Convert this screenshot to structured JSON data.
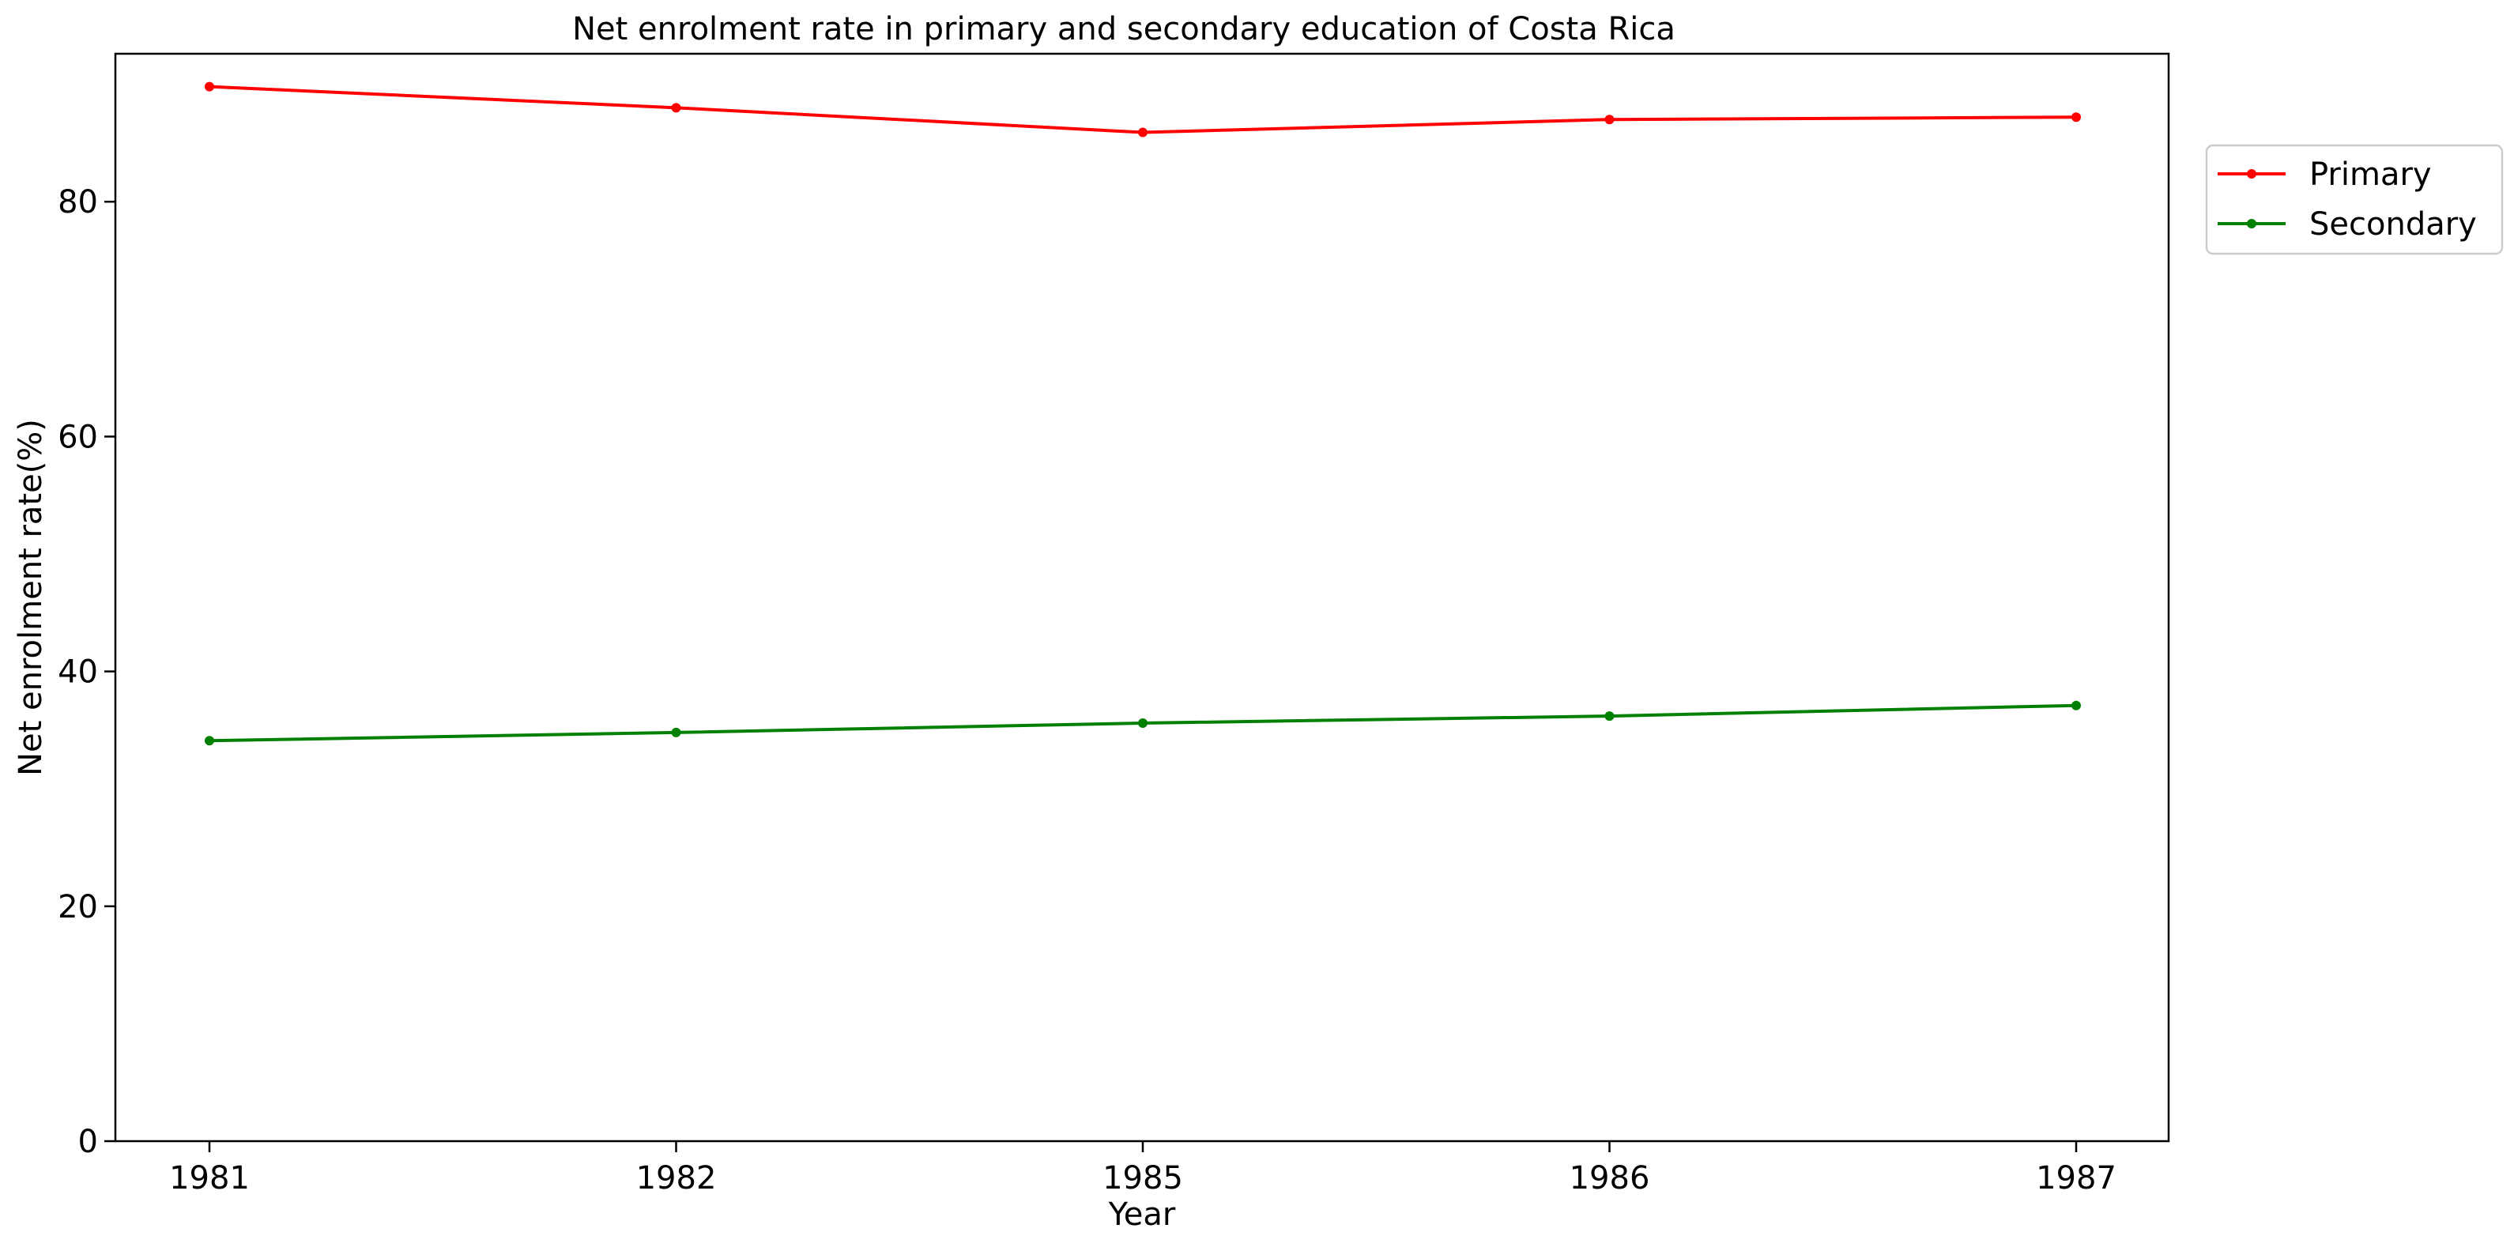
{
  "chart_data": {
    "type": "line",
    "title": "Net enrolment rate in primary and secondary education of Costa Rica",
    "xlabel": "Year",
    "ylabel": "Net enrolment rate(%)",
    "categories": [
      "1981",
      "1982",
      "1985",
      "1986",
      "1987"
    ],
    "series": [
      {
        "name": "Primary",
        "color": "#ff0000",
        "values": [
          89.8,
          88.0,
          85.9,
          87.0,
          87.2
        ]
      },
      {
        "name": "Secondary",
        "color": "#008000",
        "values": [
          34.1,
          34.8,
          35.6,
          36.2,
          37.1
        ]
      }
    ],
    "ylim": [
      0,
      92.6
    ],
    "yticks": [
      "0",
      "20",
      "40",
      "60",
      "80"
    ],
    "legend_position": "upper right, outside plot area",
    "grid": false
  }
}
